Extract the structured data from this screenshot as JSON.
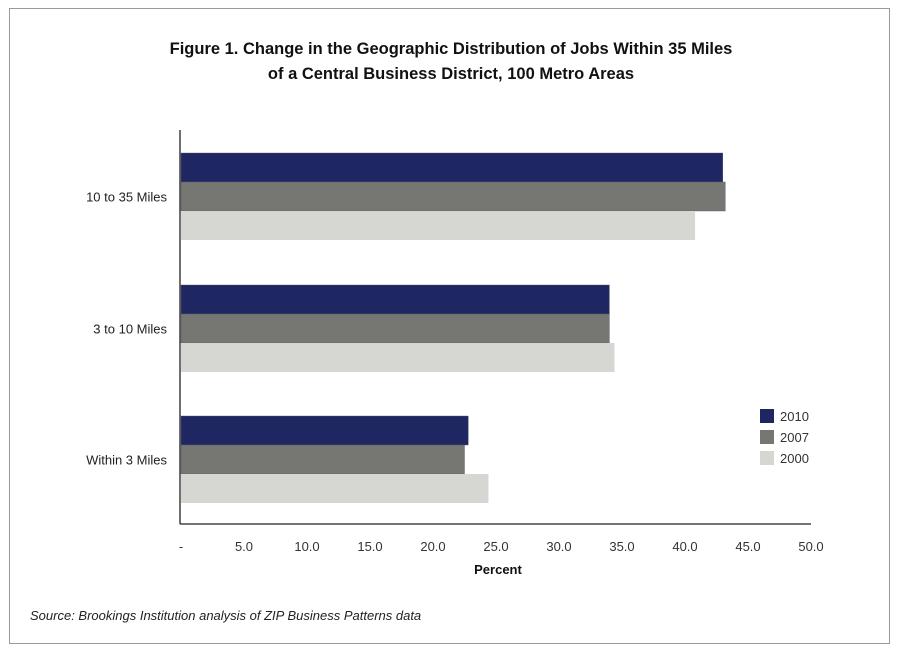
{
  "chart_data": {
    "type": "bar",
    "orientation": "horizontal",
    "title_line1": "Figure 1. Change in the Geographic Distribution of Jobs Within 35 Miles",
    "title_line2": "of a Central Business District, 100 Metro Areas",
    "categories": [
      "10 to 35 Miles",
      "3 to 10 Miles",
      "Within 3 Miles"
    ],
    "series": [
      {
        "name": "2010",
        "color": "#1e2761",
        "values": [
          43.0,
          34.0,
          22.8
        ]
      },
      {
        "name": "2007",
        "color": "#767672",
        "values": [
          43.2,
          34.0,
          22.5
        ]
      },
      {
        "name": "2000",
        "color": "#d6d6d2",
        "values": [
          40.8,
          34.4,
          24.4
        ]
      }
    ],
    "xlabel": "Percent",
    "xlim": [
      0,
      50
    ],
    "xticks": [
      "-",
      "5.0",
      "10.0",
      "15.0",
      "20.0",
      "25.0",
      "30.0",
      "35.0",
      "40.0",
      "45.0",
      "50.0"
    ],
    "grid": false,
    "legend_position": "right"
  },
  "source": "Source: Brookings Institution analysis of ZIP Business Patterns data"
}
